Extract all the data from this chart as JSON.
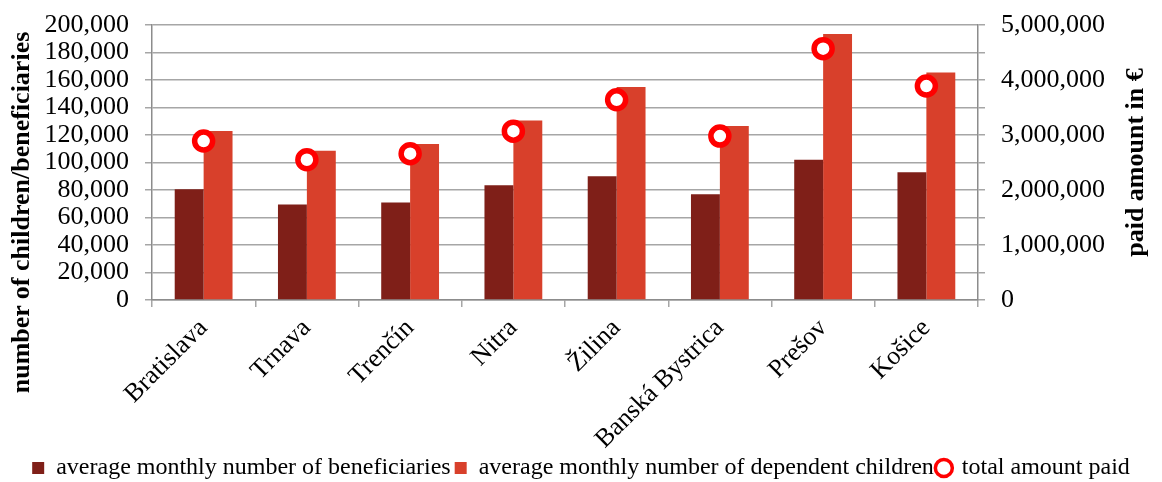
{
  "chart_data": {
    "type": "bar",
    "ylabel": "number of children/beneficiaries",
    "y2label": "paid amount in €",
    "categories": [
      "Bratislava",
      "Trnava",
      "Trenčín",
      "Nitra",
      "Žilina",
      "Banská Bystrica",
      "Prešov",
      "Košice"
    ],
    "series": [
      {
        "name": "average monthly number of beneficiaries",
        "color": "#7f1f18",
        "values": [
          80500,
          69500,
          71000,
          83500,
          90000,
          77000,
          102000,
          93000
        ]
      },
      {
        "name": "average monthly number of dependent children",
        "color": "#d8402b",
        "values": [
          123000,
          108500,
          113500,
          130500,
          155000,
          126500,
          193500,
          165500
        ]
      },
      {
        "name": "total amount paid",
        "type": "scatter",
        "axis": "y2",
        "color": "#ff0000",
        "x": [
          "Bratislava",
          "Trnava",
          "Trenčín",
          "Nitra",
          "Žilina",
          "Banská Bystrica",
          "Prešov",
          "Košice"
        ],
        "values": [
          2890000,
          2550000,
          2660000,
          3070000,
          3640000,
          2980000,
          4570000,
          3890000
        ]
      }
    ],
    "ylim": [
      0,
      200000
    ],
    "yticks": [
      0,
      {
        "value": 20000,
        "label": "20,000"
      },
      {
        "value": 40000,
        "label": "40,000"
      },
      {
        "value": 60000,
        "label": "60,000"
      },
      {
        "value": 80000,
        "label": "80,000"
      },
      {
        "value": 100000,
        "label": "100,000"
      },
      {
        "value": 120000,
        "label": "120,000"
      },
      {
        "value": 140000,
        "label": "140,000"
      },
      {
        "value": 160000,
        "label": "160,000"
      },
      {
        "value": 180000,
        "label": "180,000"
      },
      {
        "value": 200000,
        "label": "200,000"
      }
    ],
    "y2lim": [
      0,
      5000000
    ],
    "y2ticks": [
      0,
      {
        "value": 500000,
        "label": null
      },
      {
        "value": 1000000,
        "label": "1,000,000"
      },
      {
        "value": 1500000,
        "label": null
      },
      {
        "value": 2000000,
        "label": "2,000,000"
      },
      {
        "value": 2500000,
        "label": null
      },
      {
        "value": 3000000,
        "label": "3,000,000"
      },
      {
        "value": 3500000,
        "label": null
      },
      {
        "value": 4000000,
        "label": "4,000,000"
      },
      {
        "value": 4500000,
        "label": null
      },
      {
        "value": 5000000,
        "label": "5,000,000"
      }
    ],
    "grid": "y",
    "legend": "bottom",
    "marker": "circle"
  }
}
